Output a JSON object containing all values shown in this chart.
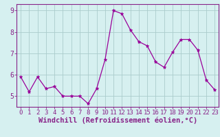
{
  "x": [
    0,
    1,
    2,
    3,
    4,
    5,
    6,
    7,
    8,
    9,
    10,
    11,
    12,
    13,
    14,
    15,
    16,
    17,
    18,
    19,
    20,
    21,
    22,
    23
  ],
  "y": [
    5.9,
    5.2,
    5.9,
    5.35,
    5.45,
    5.0,
    5.0,
    5.0,
    4.65,
    5.35,
    6.7,
    9.0,
    8.85,
    8.1,
    7.55,
    7.35,
    6.6,
    6.35,
    7.05,
    7.65,
    7.65,
    7.15,
    5.75,
    5.3
  ],
  "line_color": "#990099",
  "marker": "*",
  "marker_size": 3.5,
  "bg_color": "#d6f0f0",
  "grid_color": "#aacccc",
  "xlabel": "Windchill (Refroidissement éolien,°C)",
  "ylim": [
    4.5,
    9.3
  ],
  "xlim": [
    -0.5,
    23.5
  ],
  "yticks": [
    5,
    6,
    7,
    8,
    9
  ],
  "xticks": [
    0,
    1,
    2,
    3,
    4,
    5,
    6,
    7,
    8,
    9,
    10,
    11,
    12,
    13,
    14,
    15,
    16,
    17,
    18,
    19,
    20,
    21,
    22,
    23
  ],
  "spine_color": "#882288",
  "tick_color": "#882288",
  "label_color": "#882288",
  "tick_font_size": 6.5,
  "xlabel_font_size": 7.5
}
